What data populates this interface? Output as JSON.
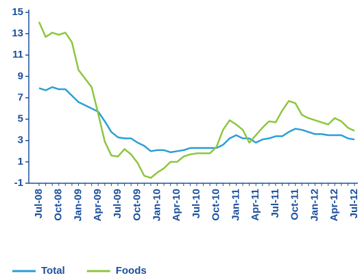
{
  "chart_data": {
    "type": "line",
    "categories": [
      "Jul-08",
      null,
      null,
      "Oct-08",
      null,
      null,
      "Jan-09",
      null,
      null,
      "Apr-09",
      null,
      null,
      "Jul-09",
      null,
      null,
      "Oct-09",
      null,
      null,
      "Jan-10",
      null,
      null,
      "Apr-10",
      null,
      null,
      "Jul-10",
      null,
      null,
      "Oct-10",
      null,
      null,
      "Jan-11",
      null,
      null,
      "Apr-11",
      null,
      null,
      "Jul-11",
      null,
      null,
      "Oct-11",
      null,
      null,
      "Jan-12",
      null,
      null,
      "Apr-12",
      null,
      null,
      "Jul-12"
    ],
    "series": [
      {
        "name": "Total",
        "color": "#2a9fd6",
        "values": [
          7.9,
          7.7,
          8.0,
          7.8,
          7.8,
          7.2,
          6.6,
          6.3,
          6.0,
          5.7,
          4.8,
          3.8,
          3.3,
          3.2,
          3.2,
          2.8,
          2.5,
          2.0,
          2.1,
          2.1,
          1.9,
          2.0,
          2.1,
          2.3,
          2.3,
          2.3,
          2.3,
          2.3,
          2.6,
          3.2,
          3.5,
          3.2,
          3.2,
          2.8,
          3.1,
          3.2,
          3.4,
          3.4,
          3.8,
          4.1,
          4.0,
          3.8,
          3.6,
          3.6,
          3.5,
          3.5,
          3.5,
          3.2,
          3.1
        ]
      },
      {
        "name": "Foods",
        "color": "#8cc63f",
        "values": [
          14.1,
          12.7,
          13.1,
          12.9,
          13.1,
          12.2,
          9.6,
          8.8,
          8.0,
          5.5,
          2.9,
          1.6,
          1.5,
          2.2,
          1.7,
          0.9,
          -0.3,
          -0.5,
          0.0,
          0.4,
          1.0,
          1.0,
          1.5,
          1.7,
          1.8,
          1.8,
          1.8,
          2.4,
          4.0,
          4.9,
          4.5,
          4.0,
          2.8,
          3.5,
          4.2,
          4.8,
          4.7,
          5.8,
          6.7,
          6.5,
          5.4,
          5.1,
          4.9,
          4.7,
          4.5,
          5.1,
          4.8,
          4.2,
          3.9
        ]
      }
    ],
    "ylim": [
      -1,
      15
    ],
    "yticks": [
      -1,
      1,
      3,
      5,
      7,
      9,
      11,
      13,
      15
    ],
    "legend": "bottom-left"
  }
}
